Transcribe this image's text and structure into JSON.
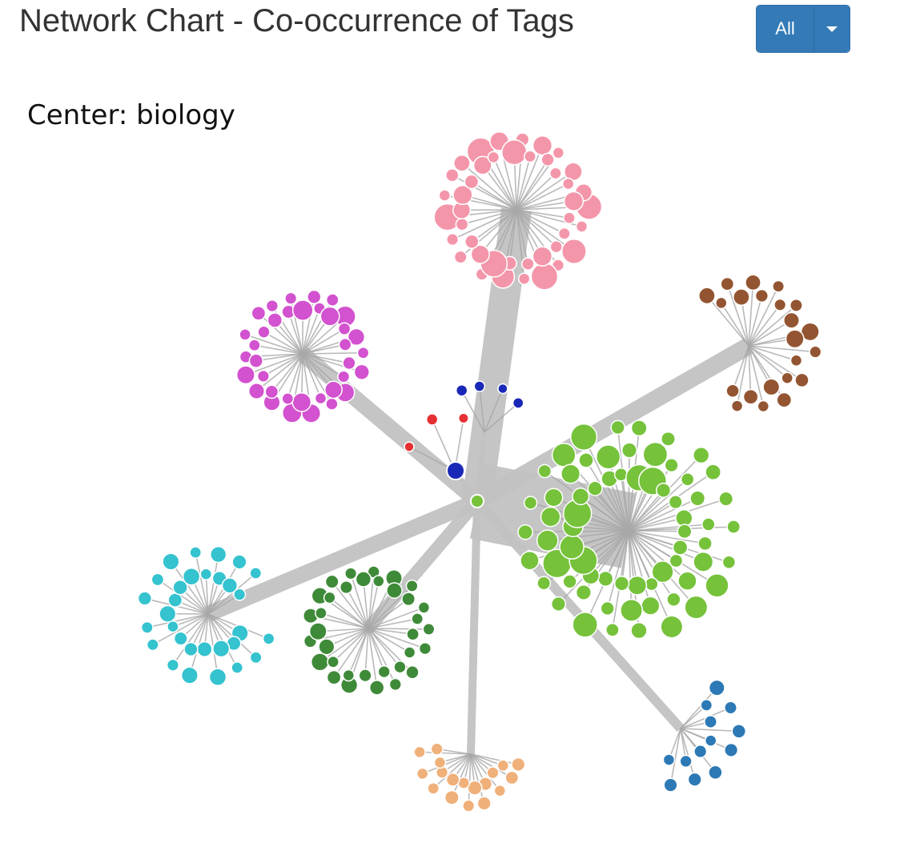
{
  "header": {
    "title": "Network Chart - Co-occurrence of Tags",
    "filter_label": "All"
  },
  "center_label": "Center: biology",
  "colors": {
    "edge": "#c2c2c2",
    "leaf_edge": "#a8a8a8",
    "button": "#337ab7"
  },
  "chart_data": {
    "type": "network",
    "center": "biology",
    "clusters": [
      {
        "color": "#f496aa",
        "leaves": 42
      },
      {
        "color": "#d252cf",
        "leaves": 36
      },
      {
        "color": "#935531",
        "leaves": 22
      },
      {
        "color": "#e63033",
        "leaves": 3
      },
      {
        "color": "#1a28b8",
        "leaves": 4
      },
      {
        "color": "#76c23b",
        "leaves": 66
      },
      {
        "color": "#34c3cf",
        "leaves": 30
      },
      {
        "color": "#3f8a39",
        "leaves": 34
      },
      {
        "color": "#f0b07a",
        "leaves": 18
      },
      {
        "color": "#2c79b5",
        "leaves": 13
      }
    ]
  }
}
